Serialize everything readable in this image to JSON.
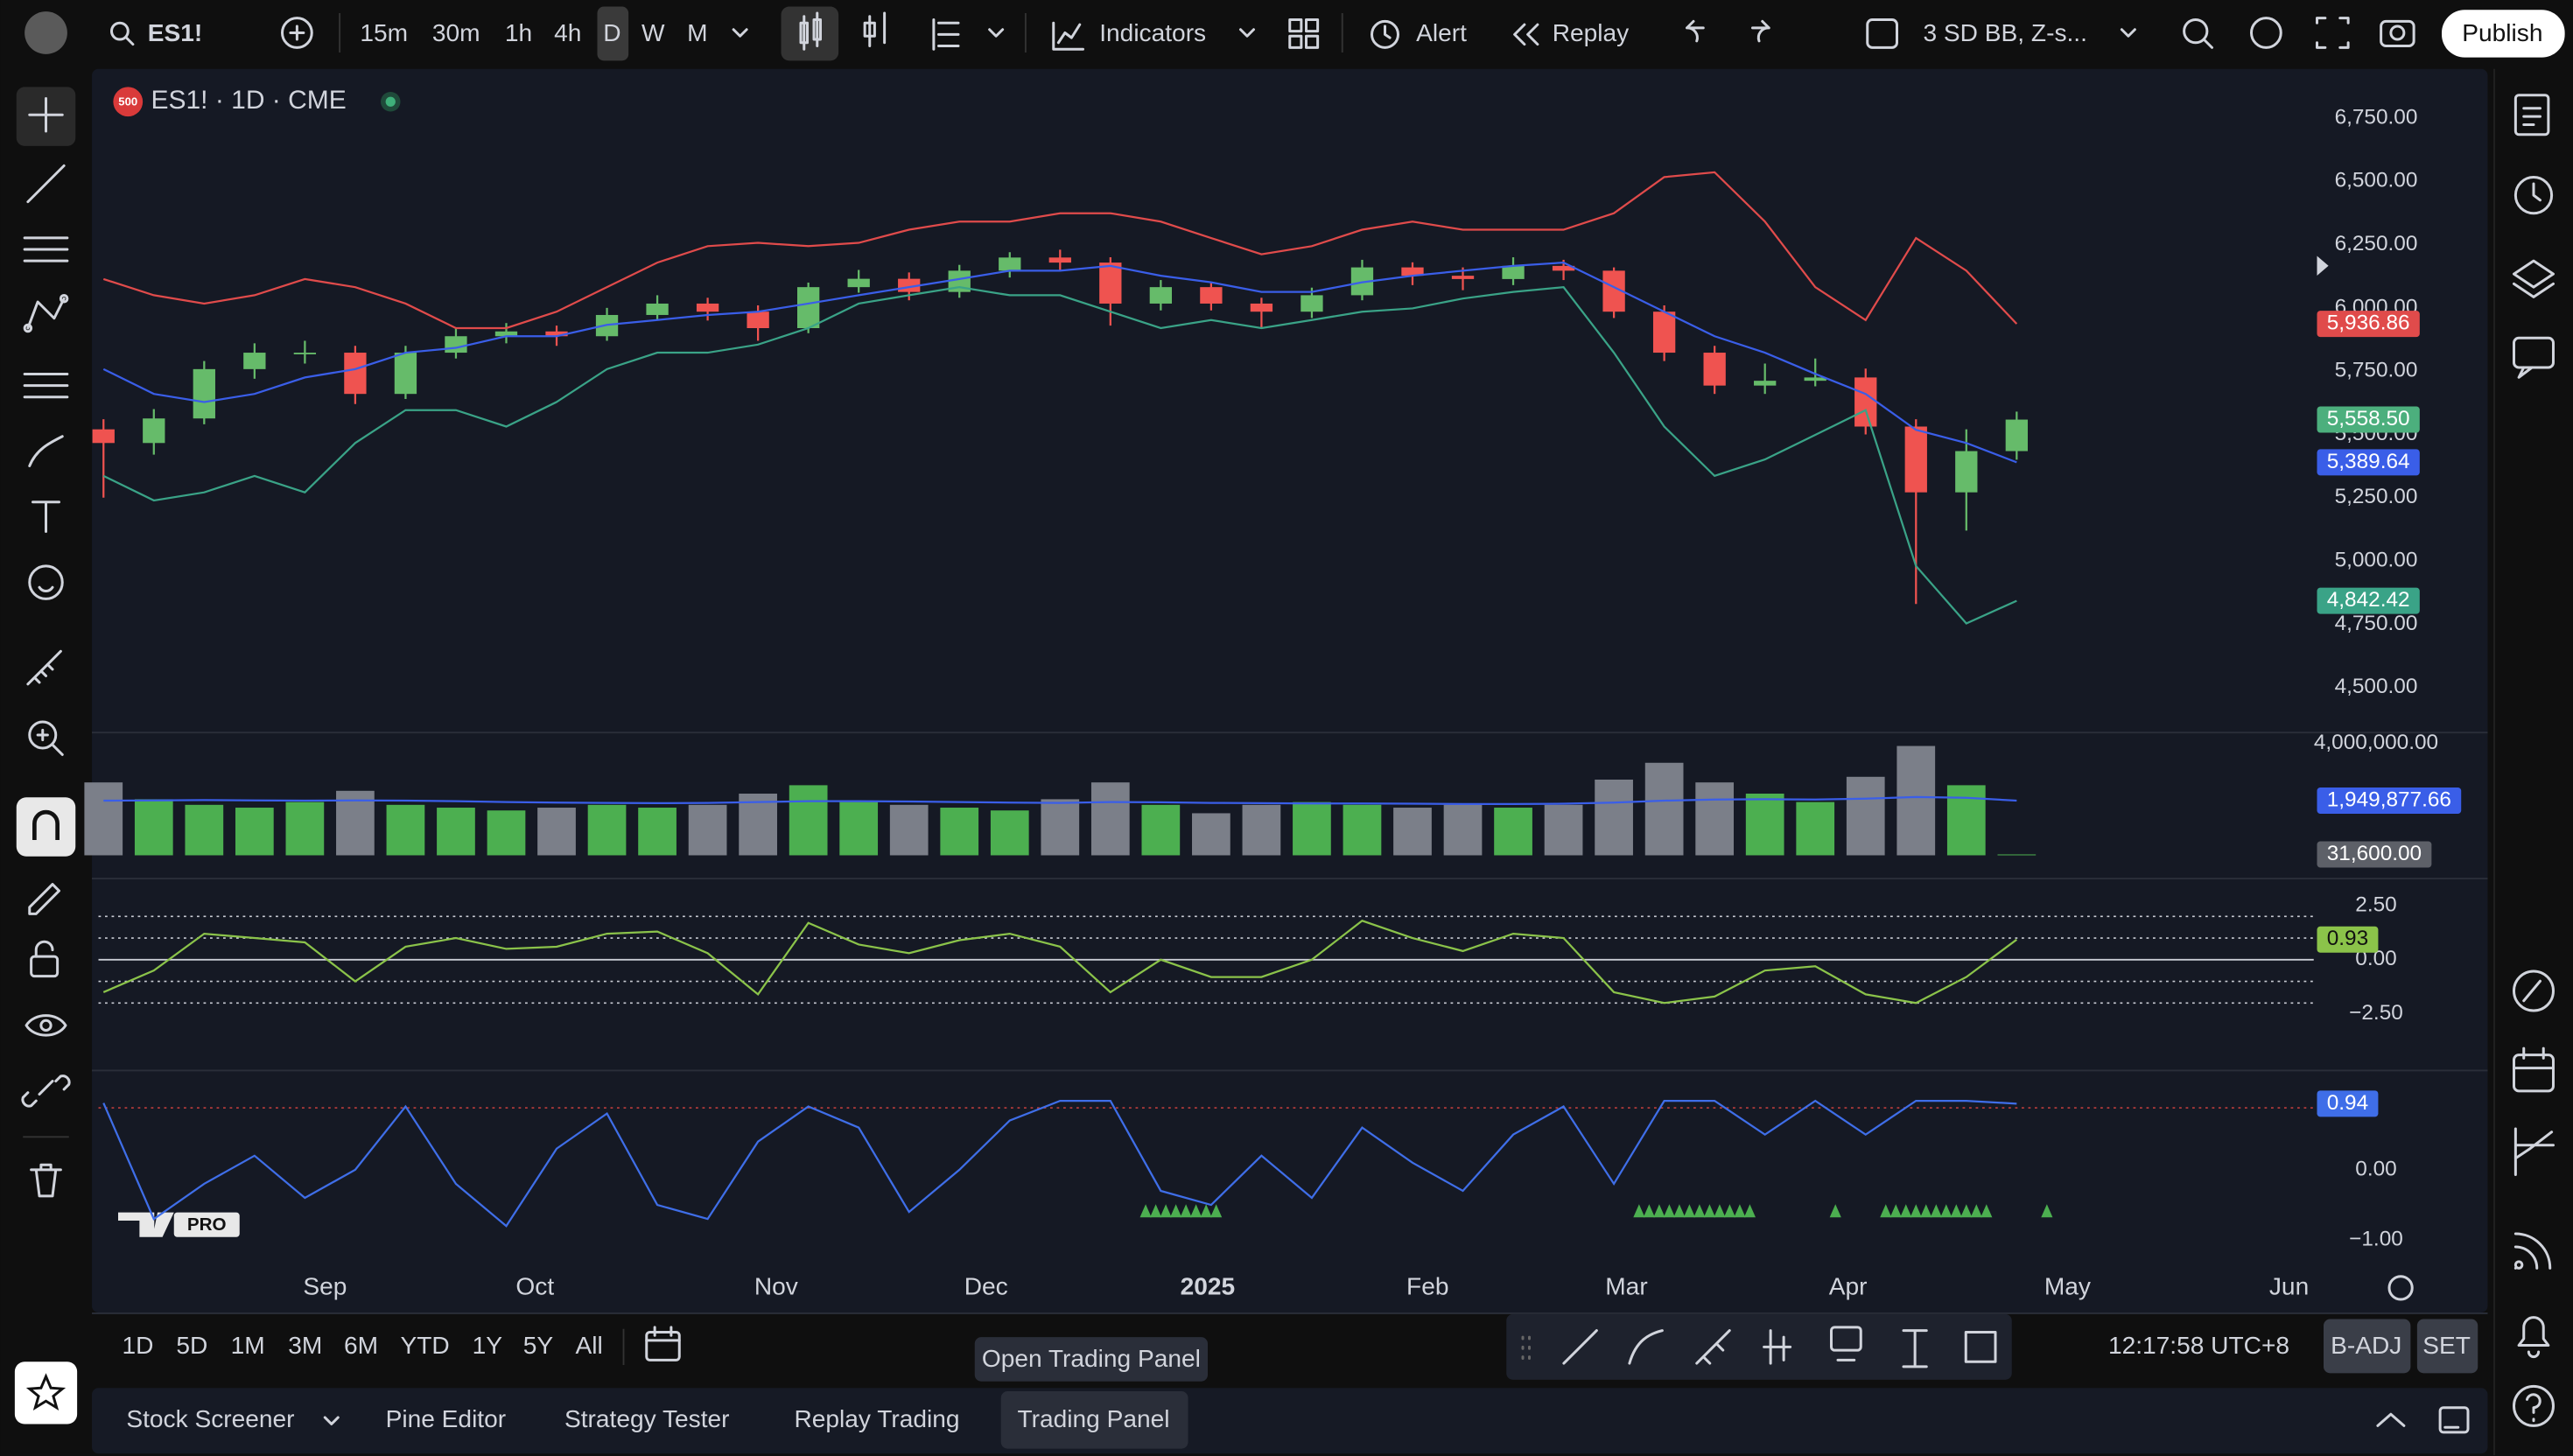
{
  "toolbar": {
    "symbol": "ES1!",
    "intervals": [
      "15m",
      "30m",
      "1h",
      "4h",
      "D",
      "W",
      "M"
    ],
    "indicators": "Indicators",
    "alert": "Alert",
    "replay": "Replay",
    "layout": "3 SD BB, Z-s...",
    "publish": "Publish"
  },
  "legend": {
    "badge": "500",
    "title": "ES1! · 1D · CME"
  },
  "logo": "PRO",
  "chart_data": [
    {
      "type": "candlestick",
      "x": [
        0,
        1,
        2,
        3,
        4,
        5,
        6,
        7,
        8,
        9,
        10,
        11,
        12,
        13,
        14,
        15,
        16,
        17,
        18,
        19,
        20,
        21,
        22,
        23,
        24,
        25,
        26,
        27,
        28,
        29,
        30,
        31,
        32,
        33,
        34,
        35,
        36,
        37,
        38
      ],
      "xlim": [
        -0.1,
        43.9
      ],
      "xticks": [
        {
          "value": 4.4,
          "label": "Sep"
        },
        {
          "value": 8.57,
          "label": "Oct"
        },
        {
          "value": 13.36,
          "label": "Nov"
        },
        {
          "value": 17.53,
          "label": "Dec"
        },
        {
          "value": 21.93,
          "label": "2025"
        },
        {
          "value": 26.3,
          "label": "Feb"
        },
        {
          "value": 30.25,
          "label": "Mar"
        },
        {
          "value": 34.65,
          "label": "Apr"
        },
        {
          "value": 39.01,
          "label": "May"
        },
        {
          "value": 43.41,
          "label": "Jun"
        }
      ],
      "ylim": [
        4325,
        6925
      ],
      "yticks": [
        {
          "value": 6750,
          "label": "6,750.00"
        },
        {
          "value": 6500,
          "label": "6,500.00"
        },
        {
          "value": 6250,
          "label": "6,250.00"
        },
        {
          "value": 6000,
          "label": "6,000.00"
        },
        {
          "value": 5750,
          "label": "5,750.00"
        },
        {
          "value": 5500,
          "label": "5,500.00"
        },
        {
          "value": 5250,
          "label": "5,250.00"
        },
        {
          "value": 5000,
          "label": "5,000.00"
        },
        {
          "value": 4750,
          "label": "4,750.00"
        },
        {
          "value": 4500,
          "label": "4,500.00"
        }
      ],
      "up_color": "#66bb6a",
      "down_color": "#ef5350",
      "last_label": "5,558.50",
      "last_label_color": "#4caf7d",
      "ohlc": [
        [
          5520,
          5560,
          5250,
          5466
        ],
        [
          5466,
          5600,
          5420,
          5563
        ],
        [
          5563,
          5790,
          5540,
          5758
        ],
        [
          5758,
          5860,
          5720,
          5823
        ],
        [
          5823,
          5870,
          5780,
          5823
        ],
        [
          5823,
          5850,
          5620,
          5660
        ],
        [
          5660,
          5850,
          5640,
          5823
        ],
        [
          5823,
          5920,
          5800,
          5888
        ],
        [
          5888,
          5940,
          5860,
          5907
        ],
        [
          5907,
          5930,
          5850,
          5888
        ],
        [
          5888,
          6000,
          5870,
          5972
        ],
        [
          5972,
          6050,
          5950,
          6017
        ],
        [
          6017,
          6040,
          5950,
          5985
        ],
        [
          5985,
          6010,
          5870,
          5920
        ],
        [
          5920,
          6100,
          5900,
          6082
        ],
        [
          6082,
          6150,
          6060,
          6115
        ],
        [
          6115,
          6140,
          6030,
          6063
        ],
        [
          6063,
          6170,
          6040,
          6147
        ],
        [
          6147,
          6220,
          6120,
          6199
        ],
        [
          6199,
          6230,
          6150,
          6179
        ],
        [
          6179,
          6200,
          5930,
          6017
        ],
        [
          6017,
          6110,
          5990,
          6082
        ],
        [
          6082,
          6100,
          5990,
          6017
        ],
        [
          6017,
          6040,
          5920,
          5985
        ],
        [
          5985,
          6080,
          5960,
          6050
        ],
        [
          6050,
          6190,
          6030,
          6160
        ],
        [
          6160,
          6180,
          6090,
          6127
        ],
        [
          6127,
          6160,
          6070,
          6114
        ],
        [
          6114,
          6200,
          6090,
          6166
        ],
        [
          6166,
          6190,
          6110,
          6147
        ],
        [
          6147,
          6160,
          5960,
          5985
        ],
        [
          5985,
          6010,
          5790,
          5823
        ],
        [
          5823,
          5850,
          5660,
          5693
        ],
        [
          5693,
          5780,
          5660,
          5712
        ],
        [
          5712,
          5800,
          5690,
          5725
        ],
        [
          5725,
          5760,
          5500,
          5531
        ],
        [
          5531,
          5560,
          4830,
          5271
        ],
        [
          5271,
          5520,
          5120,
          5434
        ],
        [
          5434,
          5590,
          5400,
          5558.5
        ]
      ],
      "series": [
        {
          "color": "#e04b4b",
          "last_label": "5,936.86",
          "values": [
            6114,
            6050,
            6017,
            6050,
            6114,
            6082,
            6017,
            5920,
            5920,
            5985,
            6082,
            6179,
            6244,
            6257,
            6244,
            6257,
            6309,
            6341,
            6341,
            6374,
            6374,
            6341,
            6276,
            6212,
            6244,
            6309,
            6341,
            6309,
            6309,
            6309,
            6374,
            6517,
            6536,
            6341,
            6082,
            5952,
            6276,
            6147,
            5936.86
          ]
        },
        {
          "color": "#3a5ee8",
          "last_label": "5,389.64",
          "values": [
            5758,
            5660,
            5628,
            5660,
            5725,
            5758,
            5823,
            5842,
            5888,
            5888,
            5933,
            5952,
            5972,
            5985,
            6017,
            6050,
            6082,
            6114,
            6147,
            6147,
            6166,
            6127,
            6101,
            6063,
            6063,
            6101,
            6127,
            6147,
            6166,
            6179,
            6082,
            5985,
            5888,
            5823,
            5739,
            5660,
            5518,
            5466,
            5389.64
          ]
        },
        {
          "color": "#3aa387",
          "last_label": "4,842.42",
          "values": [
            5336,
            5239,
            5271,
            5336,
            5271,
            5466,
            5596,
            5596,
            5531,
            5628,
            5758,
            5823,
            5823,
            5855,
            5920,
            6017,
            6050,
            6082,
            6050,
            6050,
            5985,
            5920,
            5952,
            5920,
            5952,
            5985,
            5998,
            6037,
            6063,
            6082,
            5823,
            5531,
            5336,
            5401,
            5498,
            5596,
            4980,
            4753,
            4842.42
          ]
        }
      ]
    },
    {
      "type": "bar",
      "ylim": [
        -800000,
        4350000
      ],
      "yticks": [
        {
          "value": 4000000,
          "label": "4,000,000.00"
        }
      ],
      "up_color": "#4caf50",
      "down_color": "#7b7f89",
      "last_label": "31,600.00",
      "last_label_color": "#5d6068",
      "values": [
        2600000,
        2000000,
        1800000,
        1700000,
        1900000,
        2300000,
        1800000,
        1700000,
        1600000,
        1700000,
        1800000,
        1700000,
        1800000,
        2200000,
        2500000,
        1900000,
        1800000,
        1700000,
        1600000,
        2000000,
        2600000,
        1800000,
        1500000,
        1800000,
        1900000,
        1800000,
        1700000,
        1800000,
        1700000,
        1800000,
        2700000,
        3300000,
        2600000,
        2200000,
        1900000,
        2800000,
        3900000,
        2500000,
        31600
      ],
      "series": [
        {
          "color": "#3a5ee8",
          "last_label": "1,949,877.66",
          "values": [
            1950000,
            1960000,
            1970000,
            1960000,
            1950000,
            1960000,
            1950000,
            1930000,
            1900000,
            1880000,
            1870000,
            1860000,
            1870000,
            1900000,
            1930000,
            1930000,
            1920000,
            1900000,
            1880000,
            1870000,
            1900000,
            1890000,
            1870000,
            1860000,
            1850000,
            1850000,
            1840000,
            1830000,
            1830000,
            1840000,
            1880000,
            1950000,
            1990000,
            2000000,
            1990000,
            2020000,
            2080000,
            2050000,
            1949877.66
          ]
        }
      ]
    },
    {
      "type": "line",
      "ylim": [
        -5.08,
        3.71
      ],
      "yticks": [
        {
          "value": 2.5,
          "label": "2.50"
        },
        {
          "value": 0,
          "label": "0.00"
        },
        {
          "value": -2.5,
          "label": "−2.50"
        }
      ],
      "levels": [
        -2,
        -1,
        0,
        1,
        2
      ],
      "level_color": "#c9ccd4",
      "series": [
        {
          "color": "#8bc34a",
          "last_label": "0.93",
          "values": [
            -1.5,
            -0.5,
            1.2,
            1.0,
            0.8,
            -1.0,
            0.6,
            1.0,
            0.5,
            0.6,
            1.2,
            1.3,
            0.3,
            -1.6,
            1.7,
            0.7,
            0.3,
            0.9,
            1.2,
            0.6,
            -1.5,
            0.0,
            -0.8,
            -0.8,
            0.0,
            1.8,
            1.0,
            0.4,
            1.2,
            1.0,
            -1.5,
            -2.0,
            -1.7,
            -0.5,
            -0.3,
            -1.6,
            -2.0,
            -0.8,
            0.93
          ]
        }
      ]
    },
    {
      "type": "line",
      "ylim": [
        -1.33,
        1.4
      ],
      "yticks": [
        {
          "value": 0,
          "label": "0.00"
        },
        {
          "value": -1,
          "label": "−1.00"
        }
      ],
      "levels": [
        0.88
      ],
      "level_color": "#b03a3a",
      "signal_color": "#4caf50",
      "signals": [
        20.7,
        20.9,
        21.1,
        21.3,
        21.5,
        21.7,
        21.9,
        22.1,
        30.5,
        30.7,
        30.9,
        31.1,
        31.3,
        31.5,
        31.7,
        31.9,
        32.1,
        32.3,
        32.5,
        32.7,
        34.4,
        35.4,
        35.6,
        35.8,
        36.0,
        36.2,
        36.4,
        36.6,
        36.8,
        37.0,
        37.2,
        37.4,
        38.6
      ],
      "series": [
        {
          "color": "#3f6ee8",
          "last_label": "0.94",
          "values": [
            0.95,
            -0.7,
            -0.2,
            0.2,
            -0.4,
            0.0,
            0.9,
            -0.2,
            -0.8,
            0.3,
            0.8,
            -0.5,
            -0.7,
            0.4,
            0.9,
            0.6,
            -0.6,
            0.0,
            0.7,
            0.98,
            0.98,
            -0.3,
            -0.5,
            0.2,
            -0.4,
            0.6,
            0.1,
            -0.3,
            0.5,
            0.9,
            -0.2,
            0.98,
            0.98,
            0.5,
            0.98,
            0.5,
            0.98,
            0.98,
            0.94
          ]
        }
      ]
    }
  ],
  "bottom_bar": {
    "ranges": [
      "1D",
      "5D",
      "1M",
      "3M",
      "6M",
      "YTD",
      "1Y",
      "5Y",
      "All"
    ],
    "tooltip": "Open Trading Panel",
    "time": "12:17:58 UTC+8",
    "adjustment": "B-ADJ",
    "session": "SET"
  },
  "tabs": [
    "Stock Screener",
    "Pine Editor",
    "Strategy Tester",
    "Replay Trading",
    "Trading Panel"
  ]
}
